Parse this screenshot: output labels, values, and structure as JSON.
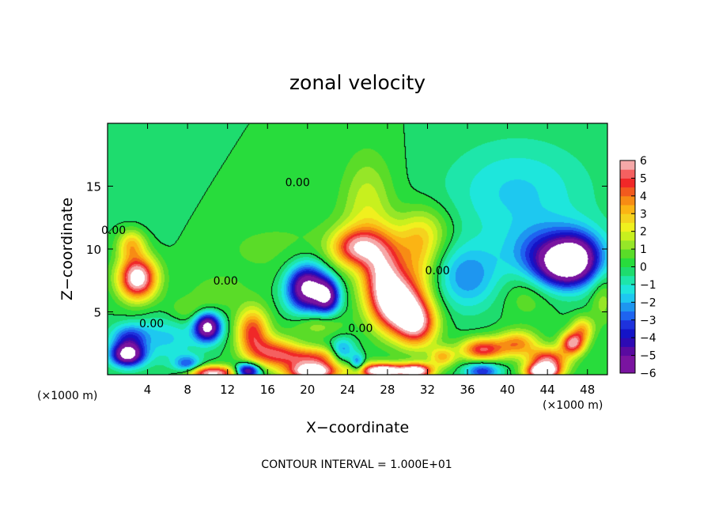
{
  "chart_data": {
    "type": "heatmap",
    "title": "zonal velocity",
    "xlabel": "X−coordinate",
    "ylabel": "Z−coordinate",
    "x_units_left": "(×1000 m)",
    "x_units_right": "(×1000 m)",
    "footer": "CONTOUR INTERVAL = 1.000E+01",
    "xlim": [
      0,
      50
    ],
    "ylim": [
      0,
      20
    ],
    "x_ticks": [
      4,
      8,
      12,
      16,
      20,
      24,
      28,
      32,
      36,
      40,
      44,
      48
    ],
    "y_ticks": [
      5,
      10,
      15
    ],
    "colorbar": {
      "min": -6,
      "max": 6,
      "tick_labels": [
        "6",
        "5",
        "4",
        "3",
        "2",
        "1",
        "0",
        "−1",
        "−2",
        "−3",
        "−4",
        "−5",
        "−6"
      ],
      "levels": [
        {
          "lo": 5.5,
          "color": "#f5a8a8"
        },
        {
          "lo": 5.0,
          "color": "#f56060"
        },
        {
          "lo": 4.5,
          "color": "#f02828"
        },
        {
          "lo": 4.0,
          "color": "#f25a1e"
        },
        {
          "lo": 3.5,
          "color": "#f78c14"
        },
        {
          "lo": 3.0,
          "color": "#fbb414"
        },
        {
          "lo": 2.5,
          "color": "#f5d21e"
        },
        {
          "lo": 2.0,
          "color": "#f0f01e"
        },
        {
          "lo": 1.5,
          "color": "#c8f01e"
        },
        {
          "lo": 1.0,
          "color": "#96e628"
        },
        {
          "lo": 0.5,
          "color": "#5adc28"
        },
        {
          "lo": 0.0,
          "color": "#28dc3c"
        },
        {
          "lo": -0.5,
          "color": "#1edc6e"
        },
        {
          "lo": -1.0,
          "color": "#1ee6aa"
        },
        {
          "lo": -1.5,
          "color": "#1ee6dc"
        },
        {
          "lo": -2.0,
          "color": "#1ec8f0"
        },
        {
          "lo": -2.5,
          "color": "#1e96f0"
        },
        {
          "lo": -3.0,
          "color": "#1e64f0"
        },
        {
          "lo": -3.5,
          "color": "#1e32dc"
        },
        {
          "lo": -4.0,
          "color": "#1414c8"
        },
        {
          "lo": -4.5,
          "color": "#2d0ab4"
        },
        {
          "lo": -5.0,
          "color": "#5a0aa0"
        },
        {
          "lo": -99,
          "color": "#7a14a0"
        }
      ]
    },
    "contour_labels": [
      {
        "text": "0.00",
        "x": 19.0,
        "z": 15.3
      },
      {
        "text": "0.00",
        "x": 11.8,
        "z": 7.5
      },
      {
        "text": "0.00",
        "x": 4.4,
        "z": 4.1
      },
      {
        "text": "0.00",
        "x": 25.3,
        "z": 3.7
      },
      {
        "text": "0.00",
        "x": 0.6,
        "z": 11.5
      },
      {
        "text": "0.00",
        "x": 33.0,
        "z": 8.3
      }
    ],
    "features": [
      {
        "x": 17.0,
        "z": 10.0,
        "sx": 9.0,
        "sz": 3.2,
        "v": 0.6
      },
      {
        "x": 26.0,
        "z": 13.5,
        "sx": 2.5,
        "sz": 4.0,
        "v": 1.8
      },
      {
        "x": 4.0,
        "z": 13.0,
        "sx": 4.0,
        "sz": 4.0,
        "v": -0.4
      },
      {
        "x": 41.0,
        "z": 14.5,
        "sx": 7.0,
        "sz": 4.0,
        "v": -1.6
      },
      {
        "x": 45.0,
        "z": 9.5,
        "sx": 4.5,
        "sz": 2.3,
        "v": -3.8
      },
      {
        "x": 45.5,
        "z": 8.7,
        "sx": 2.6,
        "sz": 1.7,
        "v": -4.2
      },
      {
        "x": 47.0,
        "z": 9.3,
        "sx": 2.1,
        "sz": 1.8,
        "v": -3.0
      },
      {
        "x": 36.0,
        "z": 7.8,
        "sx": 3.0,
        "sz": 2.5,
        "v": -2.4
      },
      {
        "x": 3.0,
        "z": 7.7,
        "sx": 1.9,
        "sz": 1.7,
        "v": 7.2
      },
      {
        "x": 2.4,
        "z": 10.4,
        "sx": 1.4,
        "sz": 1.2,
        "v": 3.0
      },
      {
        "x": 20.0,
        "z": 6.9,
        "sx": 2.0,
        "sz": 1.8,
        "v": -7.0
      },
      {
        "x": 22.0,
        "z": 6.2,
        "sx": 1.2,
        "sz": 1.3,
        "v": -5.0
      },
      {
        "x": 24.8,
        "z": 10.1,
        "sx": 2.4,
        "sz": 1.5,
        "v": 4.5
      },
      {
        "x": 27.5,
        "z": 8.0,
        "sx": 2.1,
        "sz": 2.6,
        "v": 5.0
      },
      {
        "x": 29.0,
        "z": 5.5,
        "sx": 2.5,
        "sz": 2.2,
        "v": 6.8
      },
      {
        "x": 31.0,
        "z": 4.0,
        "sx": 2.0,
        "sz": 1.8,
        "v": 5.0
      },
      {
        "x": 31.0,
        "z": 9.0,
        "sx": 2.0,
        "sz": 3.0,
        "v": 2.0
      },
      {
        "x": 32.0,
        "z": 11.5,
        "sx": 2.5,
        "sz": 2.0,
        "v": 1.4
      },
      {
        "x": 37.5,
        "z": 2.0,
        "sx": 2.2,
        "sz": 0.9,
        "v": 5.0
      },
      {
        "x": 41.0,
        "z": 2.5,
        "sx": 2.0,
        "sz": 1.0,
        "v": 3.6
      },
      {
        "x": 44.0,
        "z": 1.1,
        "sx": 2.0,
        "sz": 1.0,
        "v": 5.4
      },
      {
        "x": 46.5,
        "z": 2.5,
        "sx": 1.2,
        "sz": 0.9,
        "v": 5.6
      },
      {
        "x": 47.5,
        "z": 3.6,
        "sx": 1.1,
        "sz": 1.0,
        "v": 3.0
      },
      {
        "x": 10.0,
        "z": 3.8,
        "sx": 1.3,
        "sz": 1.1,
        "v": -7.0
      },
      {
        "x": 6.0,
        "z": 3.0,
        "sx": 3.0,
        "sz": 2.0,
        "v": -1.6
      },
      {
        "x": 2.0,
        "z": 1.6,
        "sx": 1.6,
        "sz": 0.9,
        "v": -7.0
      },
      {
        "x": 2.2,
        "z": 3.0,
        "sx": 1.8,
        "sz": 1.0,
        "v": -3.0
      },
      {
        "x": 14.5,
        "z": 3.5,
        "sx": 1.6,
        "sz": 1.8,
        "v": 4.5
      },
      {
        "x": 16.5,
        "z": 1.8,
        "sx": 2.5,
        "sz": 1.2,
        "v": 4.0
      },
      {
        "x": 14.0,
        "z": 0.3,
        "sx": 1.2,
        "sz": 0.6,
        "v": -6.2
      },
      {
        "x": 10.5,
        "z": 0.1,
        "sx": 2.5,
        "sz": 0.6,
        "v": 6.5
      },
      {
        "x": 20.5,
        "z": 1.3,
        "sx": 3.5,
        "sz": 0.9,
        "v": 4.2
      },
      {
        "x": 20.5,
        "z": 0.2,
        "sx": 2.5,
        "sz": 0.7,
        "v": 7.0
      },
      {
        "x": 27.5,
        "z": 0.3,
        "sx": 2.5,
        "sz": 0.6,
        "v": 8.0
      },
      {
        "x": 31.0,
        "z": 0.3,
        "sx": 1.6,
        "sz": 0.6,
        "v": 6.5
      },
      {
        "x": 33.5,
        "z": 1.4,
        "sx": 1.3,
        "sz": 0.8,
        "v": 3.0
      },
      {
        "x": 37.5,
        "z": 0.3,
        "sx": 1.7,
        "sz": 0.7,
        "v": -3.5
      },
      {
        "x": 43.5,
        "z": 0.2,
        "sx": 1.6,
        "sz": 0.6,
        "v": 7.0
      },
      {
        "x": 8.0,
        "z": 5.0,
        "sx": 2.5,
        "sz": 1.2,
        "v": 1.2
      },
      {
        "x": 8.0,
        "z": 0.8,
        "sx": 1.3,
        "sz": 0.7,
        "v": -3.0
      },
      {
        "x": 23.5,
        "z": 1.8,
        "sx": 1.2,
        "sz": 1.0,
        "v": -3.2
      },
      {
        "x": 25.0,
        "z": 0.9,
        "sx": 0.7,
        "sz": 0.8,
        "v": -3.2
      },
      {
        "x": 28.5,
        "z": 10.5,
        "sx": 4.0,
        "sz": 2.0,
        "v": 1.0
      },
      {
        "x": 21.0,
        "z": 4.0,
        "sx": 2.5,
        "sz": 1.0,
        "v": 1.5
      },
      {
        "x": 11.0,
        "z": 6.5,
        "sx": 2.5,
        "sz": 1.2,
        "v": 0.8
      },
      {
        "x": 42.0,
        "z": 6.5,
        "sx": 2.5,
        "sz": 2.0,
        "v": 1.0
      },
      {
        "x": 49.5,
        "z": 6.0,
        "sx": 1.2,
        "sz": 2.0,
        "v": 1.3
      }
    ]
  }
}
